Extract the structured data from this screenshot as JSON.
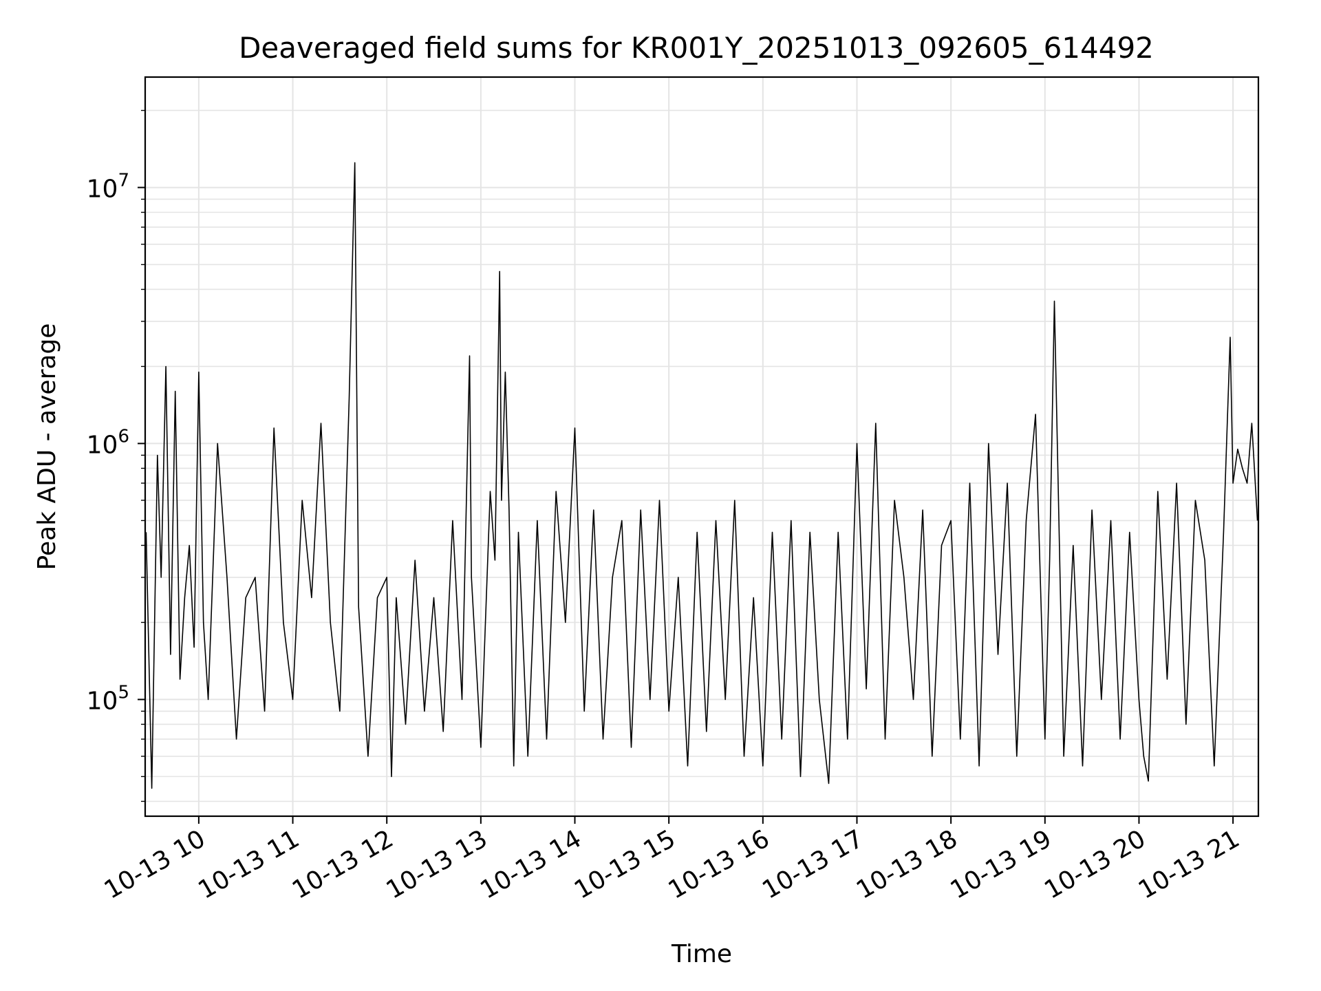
{
  "chart_data": {
    "type": "line",
    "title": "Deaveraged field sums for KR001Y_20251013_092605_614492",
    "xlabel": "Time",
    "ylabel": "Peak ADU - average",
    "yscale": "log",
    "ylim": [
      35000,
      27000000
    ],
    "xlim": [
      9.43,
      21.27
    ],
    "grid": true,
    "line_color": "#000000",
    "x_ticks": [
      {
        "value": 10,
        "label": "10-13 10"
      },
      {
        "value": 11,
        "label": "10-13 11"
      },
      {
        "value": 12,
        "label": "10-13 12"
      },
      {
        "value": 13,
        "label": "10-13 13"
      },
      {
        "value": 14,
        "label": "10-13 14"
      },
      {
        "value": 15,
        "label": "10-13 15"
      },
      {
        "value": 16,
        "label": "10-13 16"
      },
      {
        "value": 17,
        "label": "10-13 17"
      },
      {
        "value": 18,
        "label": "10-13 18"
      },
      {
        "value": 19,
        "label": "10-13 19"
      },
      {
        "value": 20,
        "label": "10-13 20"
      },
      {
        "value": 21,
        "label": "10-13 21"
      }
    ],
    "y_ticks": [
      {
        "value": 100000,
        "base": "10",
        "exp": "5"
      },
      {
        "value": 1000000,
        "base": "10",
        "exp": "6"
      },
      {
        "value": 10000000,
        "base": "10",
        "exp": "7"
      }
    ],
    "series": [
      {
        "name": "Peak ADU - average",
        "x": [
          9.44,
          9.5,
          9.56,
          9.6,
          9.65,
          9.7,
          9.75,
          9.8,
          9.85,
          9.9,
          9.95,
          10.0,
          10.05,
          10.1,
          10.2,
          10.3,
          10.4,
          10.5,
          10.6,
          10.7,
          10.8,
          10.9,
          11.0,
          11.1,
          11.2,
          11.3,
          11.4,
          11.5,
          11.6,
          11.66,
          11.7,
          11.8,
          11.9,
          12.0,
          12.05,
          12.1,
          12.2,
          12.3,
          12.4,
          12.5,
          12.6,
          12.7,
          12.8,
          12.88,
          12.9,
          13.0,
          13.1,
          13.15,
          13.2,
          13.22,
          13.26,
          13.3,
          13.35,
          13.4,
          13.5,
          13.6,
          13.7,
          13.8,
          13.9,
          14.0,
          14.1,
          14.2,
          14.3,
          14.4,
          14.5,
          14.6,
          14.7,
          14.8,
          14.9,
          15.0,
          15.1,
          15.2,
          15.3,
          15.4,
          15.5,
          15.6,
          15.7,
          15.8,
          15.9,
          16.0,
          16.1,
          16.2,
          16.3,
          16.4,
          16.5,
          16.6,
          16.7,
          16.8,
          16.9,
          17.0,
          17.1,
          17.2,
          17.3,
          17.4,
          17.5,
          17.6,
          17.7,
          17.8,
          17.9,
          18.0,
          18.1,
          18.2,
          18.3,
          18.4,
          18.5,
          18.6,
          18.7,
          18.8,
          18.9,
          19.0,
          19.05,
          19.1,
          19.2,
          19.3,
          19.4,
          19.5,
          19.6,
          19.7,
          19.8,
          19.9,
          20.0,
          20.05,
          20.1,
          20.2,
          20.3,
          20.4,
          20.5,
          20.6,
          20.7,
          20.8,
          20.9,
          20.97,
          21.0,
          21.05,
          21.1,
          21.15,
          21.2,
          21.26
        ],
        "values": [
          450000,
          45000,
          900000,
          300000,
          2000000,
          150000,
          1600000,
          120000,
          250000,
          400000,
          160000,
          1900000,
          200000,
          100000,
          1000000,
          300000,
          70000,
          250000,
          300000,
          90000,
          1150000,
          200000,
          100000,
          600000,
          250000,
          1200000,
          200000,
          90000,
          1500000,
          12500000,
          230000,
          60000,
          250000,
          300000,
          50000,
          250000,
          80000,
          350000,
          90000,
          250000,
          75000,
          500000,
          100000,
          2200000,
          300000,
          65000,
          650000,
          350000,
          4700000,
          600000,
          1900000,
          550000,
          55000,
          450000,
          60000,
          500000,
          70000,
          650000,
          200000,
          1150000,
          90000,
          550000,
          70000,
          300000,
          500000,
          65000,
          550000,
          100000,
          600000,
          90000,
          300000,
          55000,
          450000,
          75000,
          500000,
          100000,
          600000,
          60000,
          250000,
          55000,
          450000,
          70000,
          500000,
          50000,
          450000,
          100000,
          47000,
          450000,
          70000,
          1000000,
          110000,
          1200000,
          70000,
          600000,
          300000,
          100000,
          550000,
          60000,
          400000,
          500000,
          70000,
          700000,
          55000,
          1000000,
          150000,
          700000,
          60000,
          500000,
          1300000,
          70000,
          350000,
          3600000,
          60000,
          400000,
          55000,
          550000,
          100000,
          500000,
          70000,
          450000,
          100000,
          60000,
          48000,
          650000,
          120000,
          700000,
          80000,
          600000,
          350000,
          55000,
          450000,
          2600000,
          700000,
          950000,
          800000,
          700000,
          1200000,
          500000
        ]
      }
    ]
  }
}
